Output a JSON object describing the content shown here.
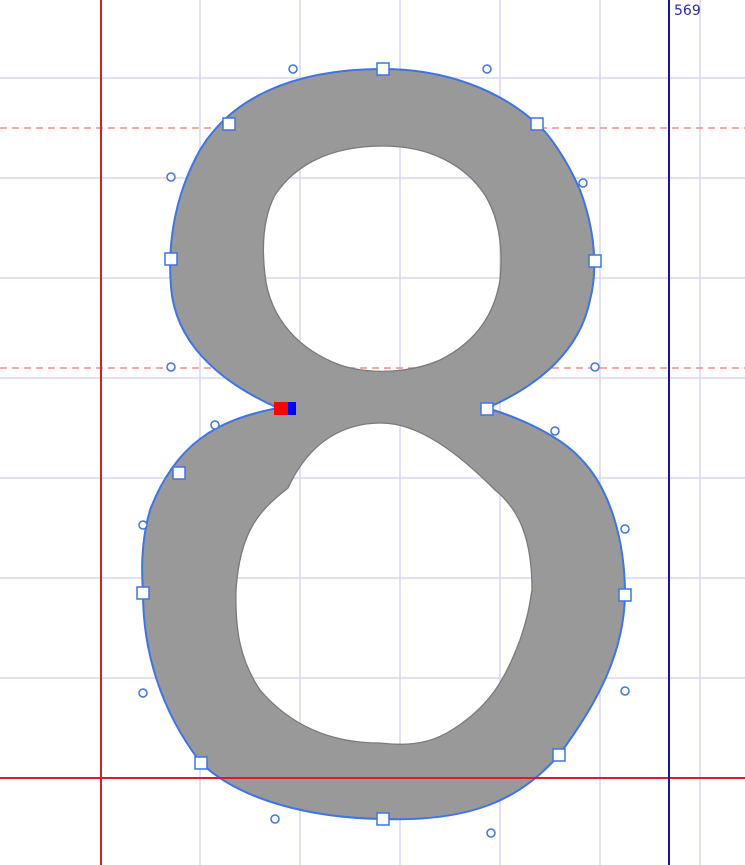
{
  "editor": {
    "glyph": "8",
    "advance_width_label": "569"
  },
  "colors": {
    "grid": "#d9d6f2",
    "baseline": "#d42020",
    "left_bearing": "#d42020",
    "advance_line": "#1414a8",
    "guide_dashed": "#f08c8c",
    "glyph_fill": "#999999",
    "glyph_outline": "#3e74e6",
    "counter_outline": "#7a7a7a",
    "start_marker": "#ff0000",
    "direction_marker": "#0000ff"
  }
}
